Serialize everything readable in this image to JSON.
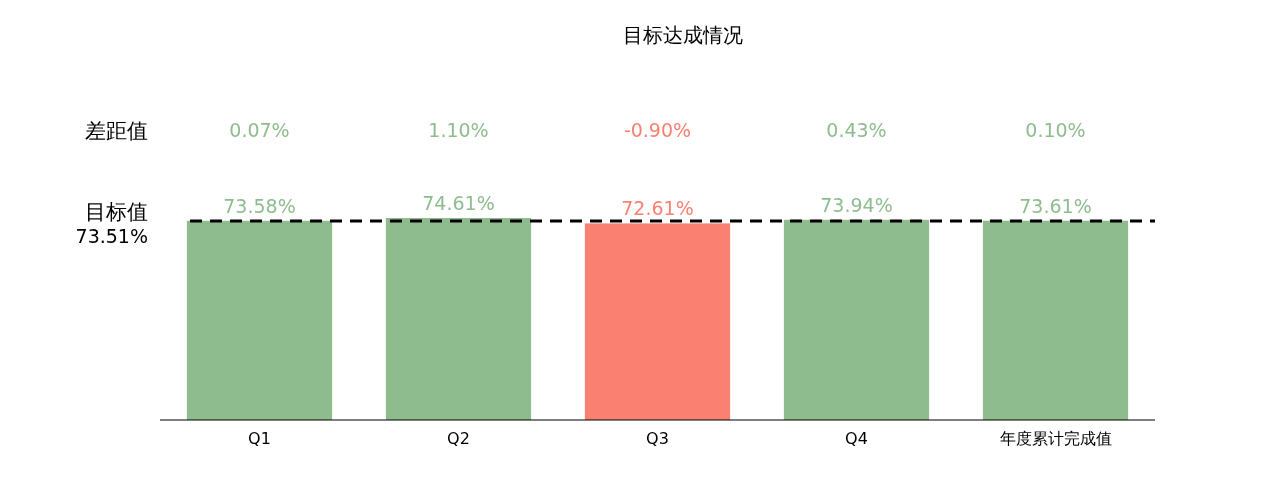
{
  "chart_data": {
    "type": "bar",
    "title": "目标达成情况",
    "categories": [
      "Q1",
      "Q2",
      "Q3",
      "Q4",
      "年度累计完成值"
    ],
    "values": [
      73.58,
      74.61,
      72.61,
      73.94,
      73.61
    ],
    "colors": [
      "#8fbc8f",
      "#8fbc8f",
      "#fa8072",
      "#8fbc8f",
      "#8fbc8f"
    ],
    "value_labels": [
      "73.58%",
      "74.61%",
      "72.61%",
      "73.94%",
      "73.61%"
    ],
    "ref_lines": [
      {
        "axis": "y",
        "value": 73.51,
        "label": "目标值",
        "color": "#000000",
        "line_style": "dashed"
      }
    ],
    "annotations": [
      "差距值",
      "0.07%",
      "1.10%",
      "-0.90%",
      "0.43%",
      "0.10%",
      "73.51%"
    ]
  }
}
